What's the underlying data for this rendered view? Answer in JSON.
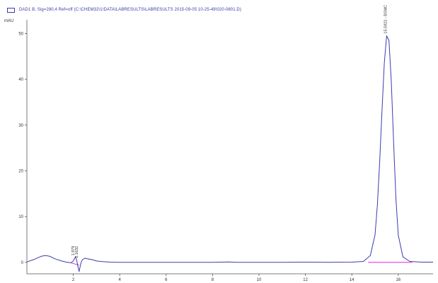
{
  "legend": {
    "text": "DAD1 B, Sig=280,4 Ref=off (C:\\CHEM32\\1\\DATA\\LABRESULTS\\LABRESULTS 2015-09-05 10-25-49\\020-0801.D)"
  },
  "colors": {
    "trace": "#3b3bb0",
    "baseline": "#e000e0",
    "axis": "#555555"
  },
  "chart_data": {
    "type": "line",
    "title": "",
    "xlabel": "",
    "ylabel": "mAU",
    "xlim": [
      0,
      17.5
    ],
    "ylim": [
      -2.5,
      53
    ],
    "x_ticks": [
      2,
      4,
      6,
      8,
      10,
      12,
      14,
      16
    ],
    "y_ticks": [
      0,
      10,
      20,
      30,
      40,
      50
    ],
    "x_tick_labels": [
      "2",
      "4",
      "6",
      "8",
      "10",
      "12",
      "14",
      "16"
    ],
    "y_tick_labels": [
      "0",
      "10",
      "20",
      "30",
      "40",
      "50"
    ],
    "series": [
      {
        "name": "DAD1 B, Sig=280,4 Ref=off",
        "x": [
          0.0,
          0.3,
          0.6,
          0.8,
          1.0,
          1.2,
          1.5,
          1.7,
          1.9,
          2.0,
          2.05,
          2.1,
          2.15,
          2.2,
          2.25,
          2.3,
          2.35,
          2.4,
          2.5,
          2.6,
          2.8,
          3.0,
          3.3,
          3.6,
          4.0,
          5.0,
          6.0,
          7.0,
          8.0,
          8.7,
          9.0,
          10.0,
          11.0,
          12.0,
          13.0,
          14.0,
          14.5,
          14.8,
          15.0,
          15.1,
          15.2,
          15.3,
          15.4,
          15.5,
          15.6,
          15.7,
          15.8,
          15.9,
          16.0,
          16.2,
          16.5,
          17.0,
          17.5
        ],
        "y": [
          0.1,
          0.6,
          1.3,
          1.5,
          1.3,
          0.8,
          0.3,
          0.05,
          -0.1,
          0.3,
          0.8,
          1.2,
          0.4,
          -1.0,
          -2.0,
          -0.8,
          0.2,
          0.6,
          0.9,
          0.8,
          0.6,
          0.3,
          0.15,
          0.05,
          0.0,
          0.0,
          0.0,
          0.0,
          0.0,
          0.1,
          0.0,
          0.0,
          0.0,
          0.05,
          0.0,
          0.05,
          0.2,
          1.5,
          6.0,
          12.5,
          22.0,
          33.0,
          43.5,
          49.5,
          48.5,
          39.5,
          26.5,
          14.0,
          6.0,
          1.2,
          0.2,
          0.05,
          0.05
        ]
      }
    ],
    "baselines": [
      {
        "x": [
          1.9,
          2.25
        ],
        "y": [
          -0.1,
          -0.6
        ]
      },
      {
        "x": [
          14.7,
          16.6
        ],
        "y": [
          0.0,
          0.0
        ]
      }
    ],
    "peak_labels": [
      {
        "x": 2.05,
        "y": 1.0,
        "text": "1.979"
      },
      {
        "x": 2.2,
        "y": 0.5,
        "text": "2.1632"
      },
      {
        "x": 15.5,
        "y": 49.5,
        "text": "15.5922 - BSMC"
      }
    ]
  }
}
